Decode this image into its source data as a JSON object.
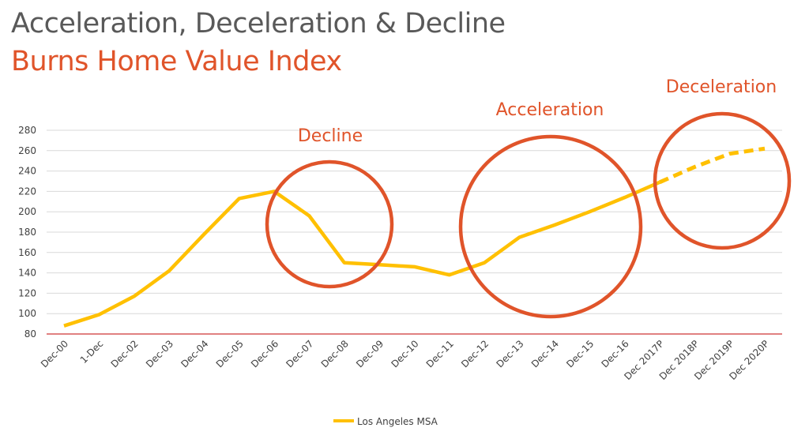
{
  "title": "Acceleration, Deceleration & Decline",
  "subtitle": "Burns Home Value Index",
  "colors": {
    "title": "#595959",
    "accent": "#E0542A",
    "line": "#FFC000",
    "baseline": "#C00000",
    "grid": "#D9D9D9"
  },
  "chart_data": {
    "type": "line",
    "title": "",
    "xlabel": "",
    "ylabel": "",
    "ylim": [
      80,
      280
    ],
    "yticks": [
      80,
      100,
      120,
      140,
      160,
      180,
      200,
      220,
      240,
      260,
      280
    ],
    "grid": true,
    "legend_position": "bottom",
    "categories": [
      "Dec-00",
      "1-Dec",
      "Dec-02",
      "Dec-03",
      "Dec-04",
      "Dec-05",
      "Dec-06",
      "Dec-07",
      "Dec-08",
      "Dec-09",
      "Dec-10",
      "Dec-11",
      "Dec-12",
      "Dec-13",
      "Dec-14",
      "Dec-15",
      "Dec-16",
      "Dec 2017P",
      "Dec 2018P",
      "Dec 2019P",
      "Dec 2020P"
    ],
    "series": [
      {
        "name": "Los Angeles MSA",
        "values": [
          88,
          99,
          117,
          142,
          178,
          213,
          220,
          196,
          150,
          148,
          146,
          138,
          150,
          175,
          187,
          200,
          214,
          229,
          244,
          257,
          262
        ],
        "projected_from_index": 17
      }
    ],
    "annotations": [
      {
        "text": "Decline",
        "range": [
          "Dec-06",
          "Dec-09"
        ]
      },
      {
        "text": "Acceleration",
        "range": [
          "Dec-12",
          "Dec-16"
        ]
      },
      {
        "text": "Deceleration",
        "range": [
          "Dec 2017P",
          "Dec 2020P"
        ]
      }
    ]
  }
}
